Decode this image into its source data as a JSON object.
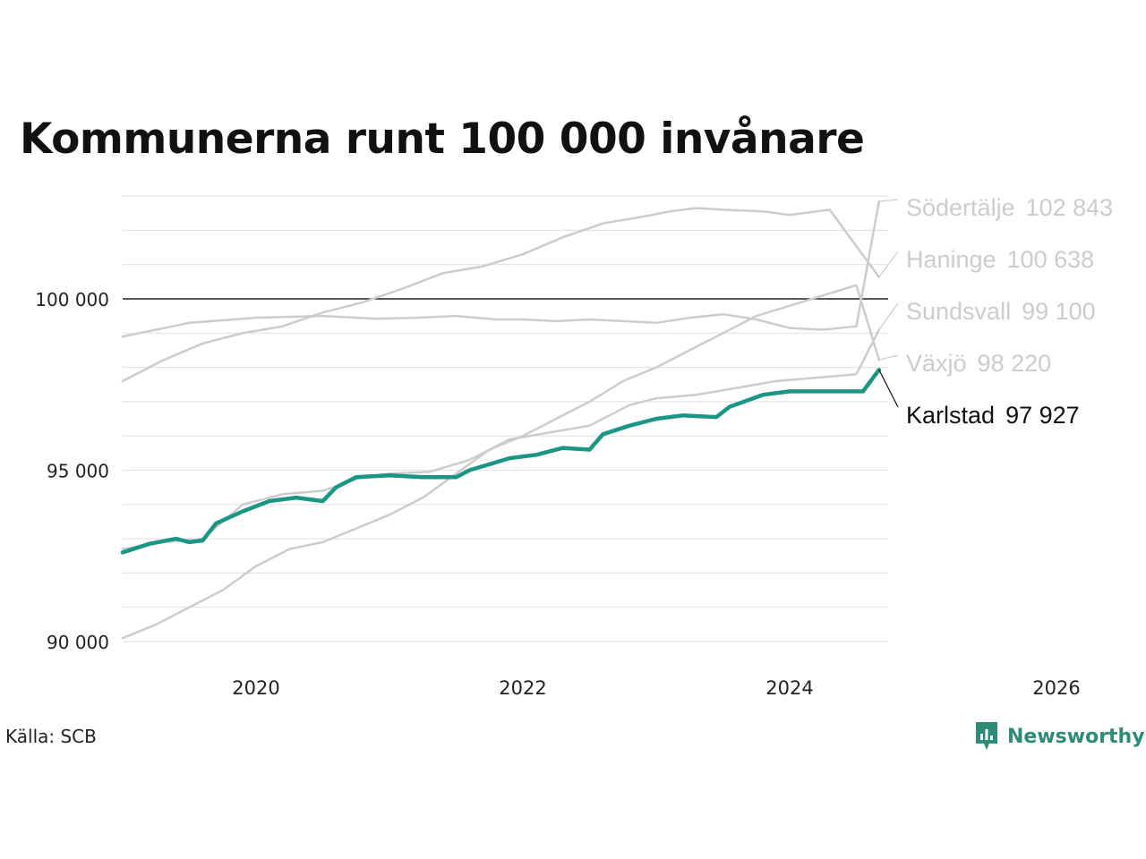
{
  "title": "Kommunerna runt 100 000 invånare",
  "source": "Källa: SCB",
  "brand": {
    "name": "Newsworthy",
    "icon": "newsworthy-logo-icon",
    "color": "#2e8b78"
  },
  "colors": {
    "highlight": "#1a9684",
    "others": "#cccccc",
    "reference": "#222222",
    "grid": "#e4e4e4"
  },
  "chart_data": {
    "type": "line",
    "title": "Kommunerna runt 100 000 invånare",
    "xlabel": "",
    "ylabel": "",
    "xlim": [
      2019.0,
      2027.0
    ],
    "ylim": [
      90000,
      103000
    ],
    "grid": true,
    "y_ticks": [
      90000,
      95000,
      100000
    ],
    "y_tick_labels": [
      "90 000",
      "95 000",
      "100 000"
    ],
    "x_ticks": [
      2020,
      2022,
      2024,
      2026
    ],
    "x_tick_labels": [
      "2020",
      "2022",
      "2024",
      "2026"
    ],
    "reference_line": 100000,
    "series": [
      {
        "name": "Södertälje",
        "end_label": "102 843",
        "highlight": false,
        "x": [
          2019.0,
          2019.5,
          2020.0,
          2020.5,
          2020.9,
          2021.2,
          2021.5,
          2021.8,
          2022.0,
          2022.25,
          2022.5,
          2022.75,
          2023.0,
          2023.25,
          2023.5,
          2023.75,
          2024.0,
          2024.25,
          2024.5,
          2024.67
        ],
        "y": [
          98900,
          99300,
          99450,
          99500,
          99420,
          99450,
          99500,
          99400,
          99400,
          99350,
          99400,
          99350,
          99300,
          99450,
          99550,
          99400,
          99150,
          99100,
          99200,
          102843
        ]
      },
      {
        "name": "Haninge",
        "end_label": "100 638",
        "highlight": false,
        "x": [
          2019.0,
          2019.3,
          2019.6,
          2019.9,
          2020.2,
          2020.5,
          2020.8,
          2021.1,
          2021.4,
          2021.7,
          2022.0,
          2022.3,
          2022.6,
          2022.9,
          2023.1,
          2023.3,
          2023.5,
          2023.8,
          2024.0,
          2024.3,
          2024.67
        ],
        "y": [
          97600,
          98200,
          98700,
          99000,
          99200,
          99600,
          99900,
          100300,
          100750,
          100950,
          101300,
          101800,
          102200,
          102400,
          102550,
          102650,
          102600,
          102550,
          102450,
          102600,
          100638
        ]
      },
      {
        "name": "Sundsvall",
        "end_label": "99 100",
        "highlight": false,
        "x": [
          2019.0,
          2019.3,
          2019.6,
          2019.9,
          2020.2,
          2020.5,
          2020.8,
          2021.0,
          2021.3,
          2021.6,
          2021.9,
          2022.2,
          2022.5,
          2022.8,
          2023.0,
          2023.3,
          2023.6,
          2023.9,
          2024.2,
          2024.5,
          2024.67
        ],
        "y": [
          92700,
          92900,
          93000,
          94000,
          94300,
          94400,
          94800,
          94900,
          94950,
          95300,
          95900,
          96100,
          96300,
          96900,
          97100,
          97200,
          97400,
          97600,
          97700,
          97800,
          99100
        ]
      },
      {
        "name": "Växjö",
        "end_label": "98 220",
        "highlight": false,
        "x": [
          2019.0,
          2019.25,
          2019.5,
          2019.75,
          2020.0,
          2020.25,
          2020.5,
          2020.75,
          2021.0,
          2021.25,
          2021.5,
          2021.75,
          2022.0,
          2022.25,
          2022.5,
          2022.75,
          2023.0,
          2023.25,
          2023.5,
          2023.75,
          2024.0,
          2024.25,
          2024.5,
          2024.67
        ],
        "y": [
          90100,
          90500,
          91000,
          91500,
          92200,
          92700,
          92900,
          93300,
          93700,
          94200,
          94900,
          95600,
          96000,
          96500,
          97000,
          97600,
          98000,
          98500,
          99000,
          99500,
          99800,
          100100,
          100400,
          98220
        ]
      },
      {
        "name": "Karlstad",
        "end_label": "97 927",
        "highlight": true,
        "x": [
          2019.0,
          2019.2,
          2019.4,
          2019.5,
          2019.6,
          2019.7,
          2019.9,
          2020.1,
          2020.3,
          2020.5,
          2020.6,
          2020.75,
          2021.0,
          2021.25,
          2021.5,
          2021.6,
          2021.9,
          2022.1,
          2022.3,
          2022.5,
          2022.6,
          2022.8,
          2023.0,
          2023.2,
          2023.45,
          2023.55,
          2023.8,
          2024.0,
          2024.2,
          2024.4,
          2024.55,
          2024.67
        ],
        "y": [
          92600,
          92850,
          93000,
          92900,
          92950,
          93450,
          93800,
          94100,
          94200,
          94100,
          94500,
          94800,
          94850,
          94800,
          94800,
          95000,
          95350,
          95450,
          95650,
          95600,
          96050,
          96300,
          96500,
          96600,
          96550,
          96850,
          97200,
          97300,
          97300,
          97300,
          97300,
          97927
        ]
      }
    ]
  }
}
